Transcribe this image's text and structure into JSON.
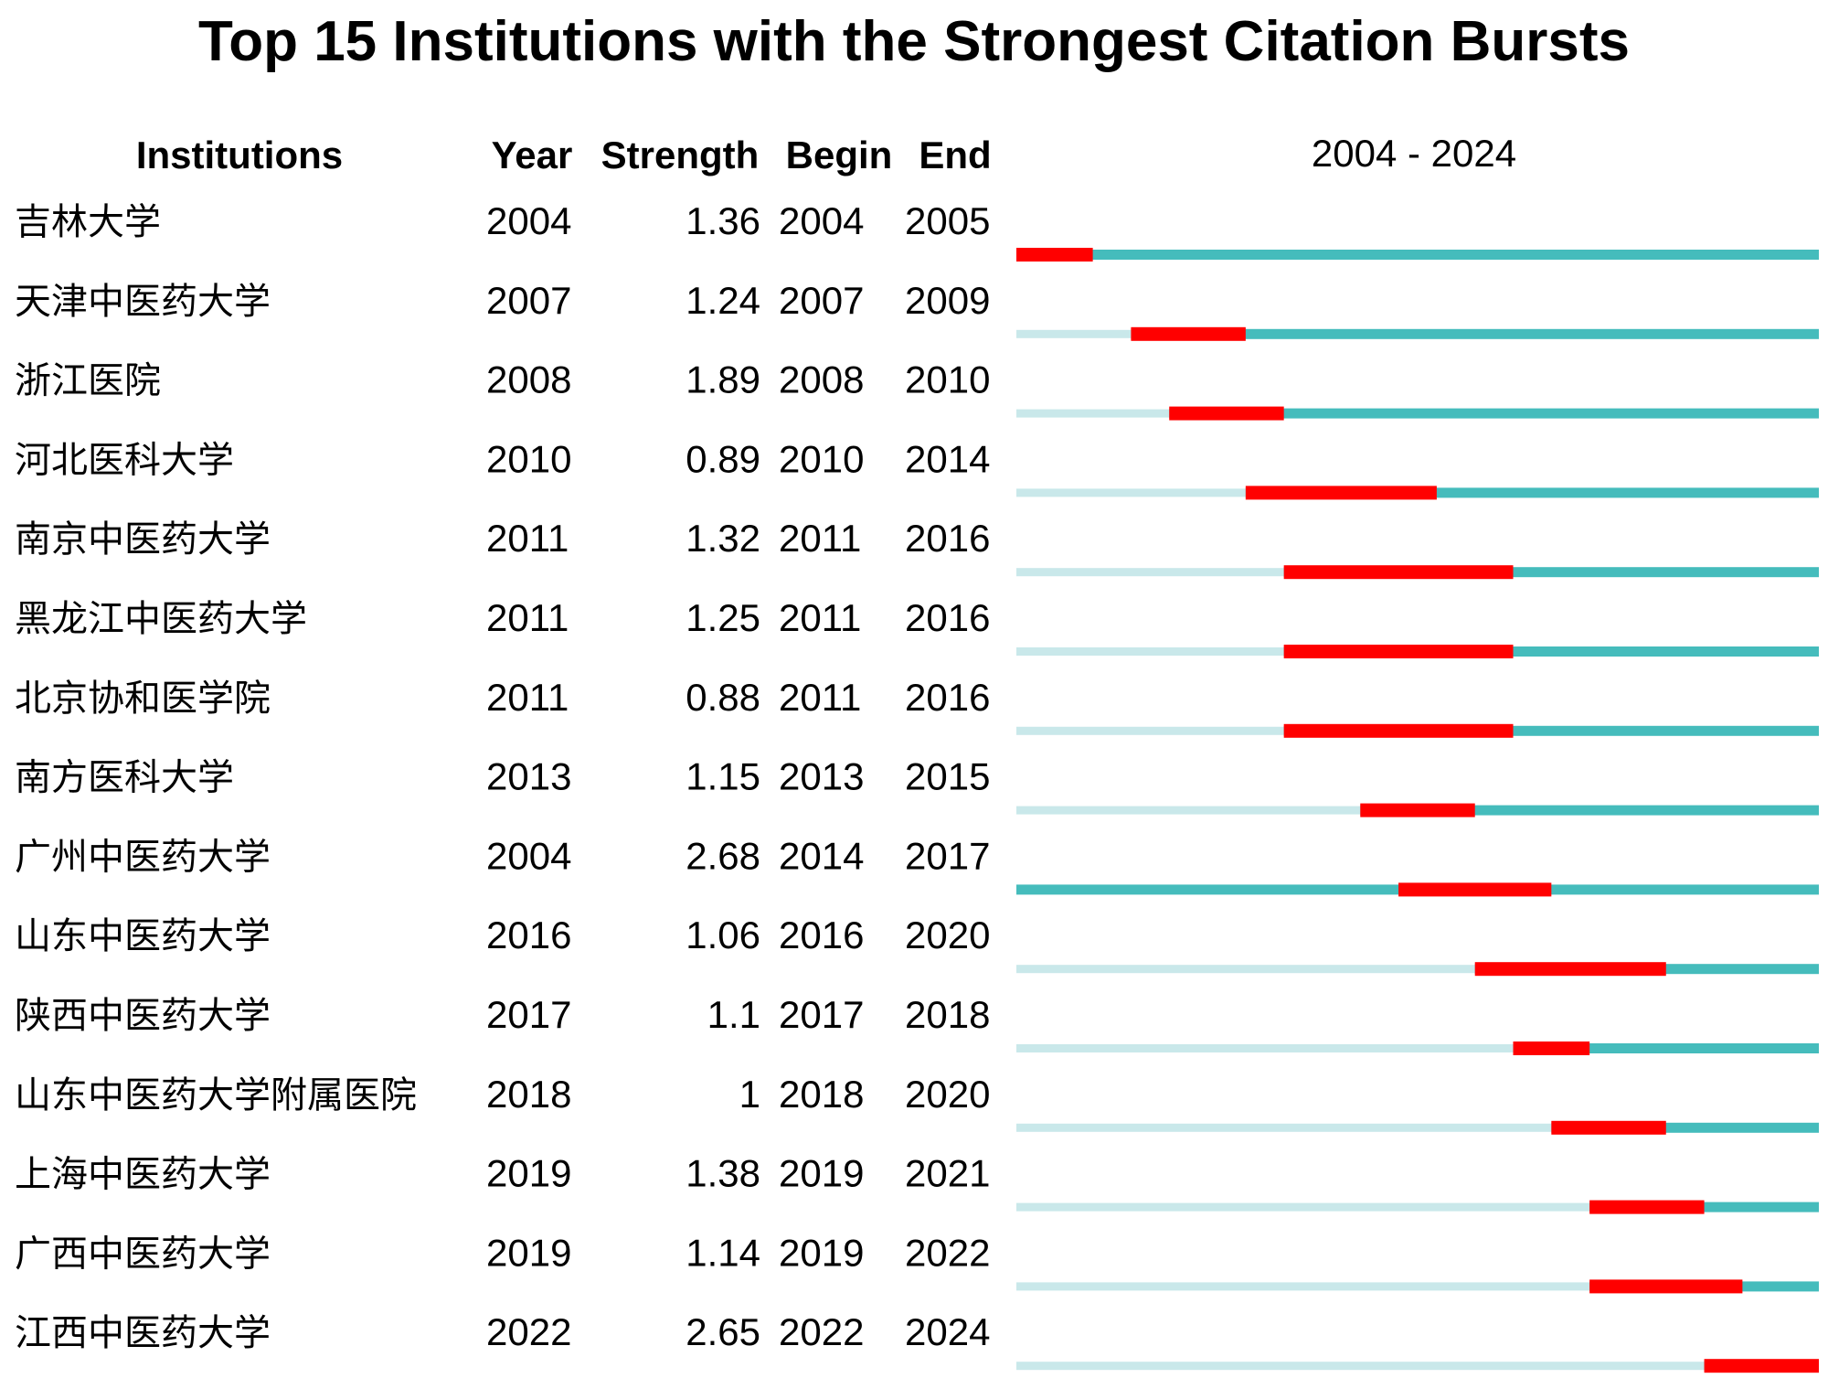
{
  "chart_data": {
    "type": "timeline",
    "title": "Top 15 Institutions with the Strongest Citation Bursts",
    "columns": {
      "institution": "Institutions",
      "year": "Year",
      "strength": "Strength",
      "begin": "Begin",
      "end": "End",
      "range": "2004 - 2024"
    },
    "range_start": 2004,
    "range_end": 2024,
    "colors": {
      "burst": "#ff0000",
      "active": "#45bcbc",
      "inactive": "#c9e8ea"
    },
    "rows": [
      {
        "institution": "吉林大学",
        "year": "2004",
        "strength": "1.36",
        "begin": "2004",
        "end": "2005"
      },
      {
        "institution": "天津中医药大学",
        "year": "2007",
        "strength": "1.24",
        "begin": "2007",
        "end": "2009"
      },
      {
        "institution": "浙江医院",
        "year": "2008",
        "strength": "1.89",
        "begin": "2008",
        "end": "2010"
      },
      {
        "institution": "河北医科大学",
        "year": "2010",
        "strength": "0.89",
        "begin": "2010",
        "end": "2014"
      },
      {
        "institution": "南京中医药大学",
        "year": "2011",
        "strength": "1.32",
        "begin": "2011",
        "end": "2016"
      },
      {
        "institution": "黑龙江中医药大学",
        "year": "2011",
        "strength": "1.25",
        "begin": "2011",
        "end": "2016"
      },
      {
        "institution": "北京协和医学院",
        "year": "2011",
        "strength": "0.88",
        "begin": "2011",
        "end": "2016"
      },
      {
        "institution": "南方医科大学",
        "year": "2013",
        "strength": "1.15",
        "begin": "2013",
        "end": "2015"
      },
      {
        "institution": "广州中医药大学",
        "year": "2004",
        "strength": "2.68",
        "begin": "2014",
        "end": "2017"
      },
      {
        "institution": "山东中医药大学",
        "year": "2016",
        "strength": "1.06",
        "begin": "2016",
        "end": "2020"
      },
      {
        "institution": "陕西中医药大学",
        "year": "2017",
        "strength": "1.1",
        "begin": "2017",
        "end": "2018"
      },
      {
        "institution": "山东中医药大学附属医院",
        "year": "2018",
        "strength": "1",
        "begin": "2018",
        "end": "2020"
      },
      {
        "institution": "上海中医药大学",
        "year": "2019",
        "strength": "1.38",
        "begin": "2019",
        "end": "2021"
      },
      {
        "institution": "广西中医药大学",
        "year": "2019",
        "strength": "1.14",
        "begin": "2019",
        "end": "2022"
      },
      {
        "institution": "江西中医药大学",
        "year": "2022",
        "strength": "2.65",
        "begin": "2022",
        "end": "2024"
      }
    ]
  }
}
